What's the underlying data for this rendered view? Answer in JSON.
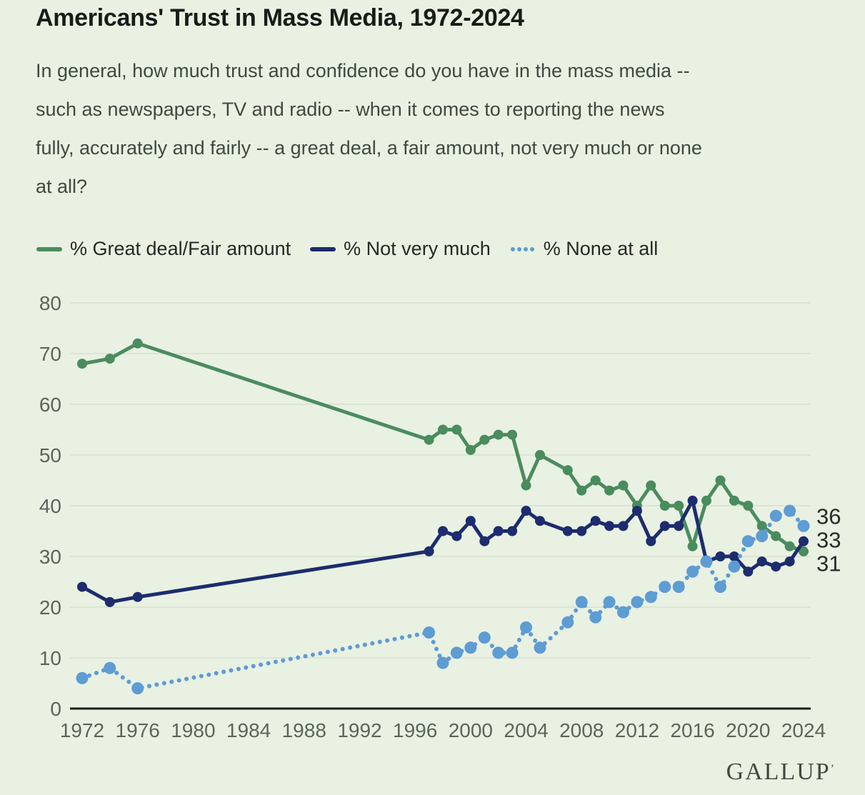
{
  "header": {
    "title": "Americans' Trust in Mass Media, 1972-2024",
    "subtitle": "In general, how much trust and confidence do you have in the mass media --\nsuch as newspapers, TV and radio -- when it comes to reporting the news\nfully, accurately and fairly -- a great deal, a fair amount, not very much or none\nat all?"
  },
  "legend": {
    "items": [
      {
        "label": "% Great deal/Fair amount",
        "color": "#4a8c5e",
        "style": "solid"
      },
      {
        "label": "% Not very much",
        "color": "#1c2c6e",
        "style": "solid"
      },
      {
        "label": "% None at all",
        "color": "#5e9cd4",
        "style": "dotted"
      }
    ]
  },
  "chart_data": {
    "type": "line",
    "title": "Americans' Trust in Mass Media, 1972-2024",
    "xlabel": "",
    "ylabel": "",
    "x": [
      1972,
      1974,
      1976,
      1997,
      1998,
      1999,
      2000,
      2001,
      2002,
      2003,
      2004,
      2005,
      2007,
      2008,
      2009,
      2010,
      2011,
      2012,
      2013,
      2014,
      2015,
      2016,
      2017,
      2018,
      2019,
      2020,
      2021,
      2022,
      2023,
      2024
    ],
    "series": [
      {
        "name": "% Great deal/Fair amount",
        "color": "#4a8c5e",
        "style": "solid",
        "values": [
          68,
          69,
          72,
          53,
          55,
          55,
          51,
          53,
          54,
          54,
          44,
          50,
          47,
          43,
          45,
          43,
          44,
          40,
          44,
          40,
          40,
          32,
          41,
          45,
          41,
          40,
          36,
          34,
          32,
          31
        ],
        "end_label": "31"
      },
      {
        "name": "% Not very much",
        "color": "#1c2c6e",
        "style": "solid",
        "values": [
          24,
          21,
          22,
          31,
          35,
          34,
          37,
          33,
          35,
          35,
          39,
          37,
          35,
          35,
          37,
          36,
          36,
          39,
          33,
          36,
          36,
          41,
          29,
          30,
          30,
          27,
          29,
          28,
          29,
          33
        ],
        "end_label": "33"
      },
      {
        "name": "% None at all",
        "color": "#5e9cd4",
        "style": "dotted",
        "values": [
          6,
          8,
          4,
          15,
          9,
          11,
          12,
          14,
          11,
          11,
          16,
          12,
          17,
          21,
          18,
          21,
          19,
          21,
          22,
          24,
          24,
          27,
          29,
          24,
          28,
          33,
          34,
          38,
          39,
          36
        ],
        "end_label": "36"
      }
    ],
    "xlim": [
      1972,
      2024
    ],
    "ylim": [
      0,
      80
    ],
    "xticks": [
      1972,
      1976,
      1980,
      1984,
      1988,
      1992,
      1996,
      2000,
      2004,
      2008,
      2012,
      2016,
      2020,
      2024
    ],
    "yticks": [
      0,
      10,
      20,
      30,
      40,
      50,
      60,
      70,
      80
    ],
    "grid": true,
    "legend_position": "top"
  },
  "colors": {
    "background": "#e9f1e2",
    "grid": "#d8dfd0",
    "axis": "#1a1d1a"
  },
  "footer": {
    "logo": "GALLUP",
    "mark": "’"
  }
}
